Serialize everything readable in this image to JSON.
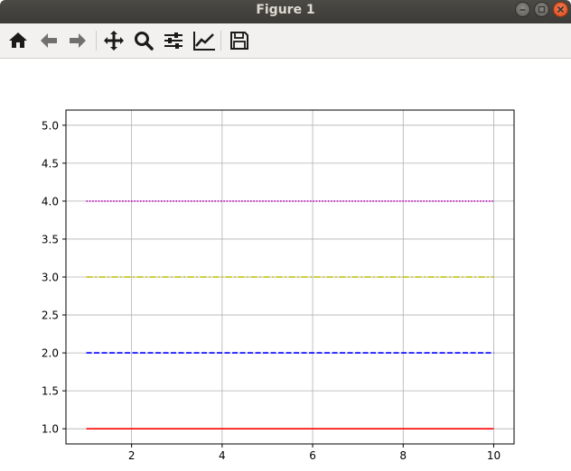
{
  "window": {
    "title": "Figure 1"
  },
  "toolbar": {
    "buttons": [
      {
        "name": "home",
        "icon": "home-icon"
      },
      {
        "name": "back",
        "icon": "arrow-left-icon"
      },
      {
        "name": "forward",
        "icon": "arrow-right-icon"
      },
      {
        "name": "pan",
        "icon": "move-icon"
      },
      {
        "name": "zoom",
        "icon": "magnifier-icon"
      },
      {
        "name": "configure-subplots",
        "icon": "sliders-icon"
      },
      {
        "name": "edit-axis",
        "icon": "line-chart-icon"
      },
      {
        "name": "save",
        "icon": "floppy-disk-icon"
      }
    ]
  },
  "chart_data": {
    "type": "line",
    "title": "",
    "xlabel": "",
    "ylabel": "",
    "xlim": [
      0.55,
      10.45
    ],
    "ylim": [
      0.8,
      5.2
    ],
    "grid": true,
    "x_ticks": [
      2,
      4,
      6,
      8,
      10
    ],
    "x_tick_labels": [
      "2",
      "4",
      "6",
      "8",
      "10"
    ],
    "y_ticks": [
      1.0,
      1.5,
      2.0,
      2.5,
      3.0,
      3.5,
      4.0,
      4.5,
      5.0
    ],
    "y_tick_labels": [
      "1.0",
      "1.5",
      "2.0",
      "2.5",
      "3.0",
      "3.5",
      "4.0",
      "4.5",
      "5.0"
    ],
    "series": [
      {
        "x": [
          1,
          10
        ],
        "y": [
          1,
          1
        ],
        "color": "#ff0000",
        "style": "solid"
      },
      {
        "x": [
          1,
          10
        ],
        "y": [
          2,
          2
        ],
        "color": "#0000ff",
        "style": "dashed"
      },
      {
        "x": [
          1,
          10
        ],
        "y": [
          3,
          3
        ],
        "color": "#bfbf00",
        "style": "dashdot"
      },
      {
        "x": [
          1,
          10
        ],
        "y": [
          4,
          4
        ],
        "color": "#bf00bf",
        "style": "dotted"
      }
    ]
  }
}
